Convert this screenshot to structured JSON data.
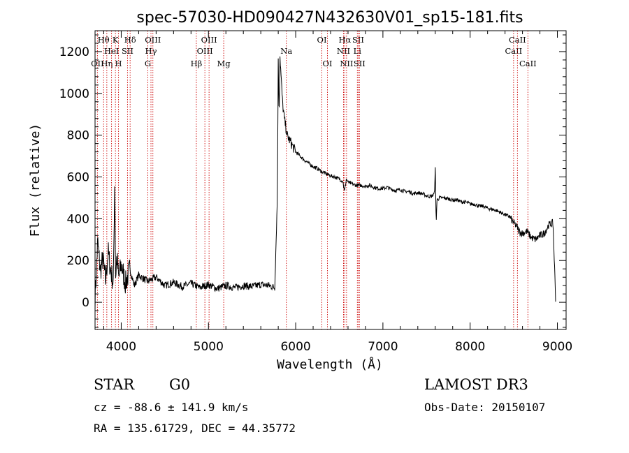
{
  "chart_data": {
    "type": "line",
    "title": "spec-57030-HD090427N432630V01_sp15-181.fits",
    "xlabel": "Wavelength (Å)",
    "ylabel": "Flux (relative)",
    "xlim": [
      3700,
      9100
    ],
    "ylim": [
      -130,
      1300
    ],
    "xticks": [
      4000,
      5000,
      6000,
      7000,
      8000,
      9000
    ],
    "yticks": [
      0,
      200,
      400,
      600,
      800,
      1000,
      1200
    ],
    "grid": false,
    "line_color": "#000000",
    "marker_color": "#cc0000",
    "series": [
      {
        "x": [
          3700,
          3730,
          3760,
          3790,
          3820,
          3850,
          3880,
          3910,
          3925,
          3935,
          3950,
          3970,
          4000,
          4050,
          4100,
          4150,
          4200,
          4300,
          4400,
          4500,
          4600,
          4700,
          4800,
          4900,
          5000,
          5100,
          5200,
          5300,
          5400,
          5500,
          5600,
          5700,
          5760,
          5790,
          5800,
          5810,
          5820,
          5830,
          5850,
          5870,
          5890,
          5900,
          5950,
          6000,
          6050,
          6100,
          6150,
          6200,
          6250,
          6300,
          6350,
          6400,
          6450,
          6500,
          6540,
          6560,
          6580,
          6600,
          6650,
          6700,
          6750,
          6800,
          6850,
          6900,
          6950,
          7000,
          7050,
          7100,
          7150,
          7200,
          7250,
          7300,
          7350,
          7400,
          7450,
          7500,
          7550,
          7590,
          7600,
          7610,
          7620,
          7650,
          7700,
          7750,
          7800,
          7850,
          7900,
          7950,
          8000,
          8050,
          8100,
          8150,
          8200,
          8250,
          8300,
          8350,
          8400,
          8450,
          8500,
          8540,
          8560,
          8600,
          8650,
          8700,
          8750,
          8800,
          8850,
          8900,
          8950,
          8980
        ],
        "y": [
          20,
          290,
          150,
          210,
          100,
          240,
          150,
          90,
          600,
          120,
          220,
          110,
          180,
          90,
          160,
          80,
          130,
          100,
          120,
          80,
          95,
          75,
          90,
          70,
          85,
          65,
          80,
          70,
          80,
          75,
          85,
          80,
          70,
          500,
          1150,
          900,
          1180,
          1100,
          950,
          880,
          830,
          800,
          760,
          720,
          700,
          680,
          665,
          650,
          640,
          625,
          615,
          605,
          600,
          590,
          580,
          530,
          590,
          575,
          565,
          560,
          560,
          555,
          560,
          550,
          545,
          545,
          550,
          540,
          535,
          540,
          530,
          530,
          520,
          525,
          520,
          510,
          505,
          520,
          640,
          380,
          490,
          500,
          500,
          495,
          490,
          490,
          480,
          480,
          470,
          470,
          460,
          460,
          450,
          445,
          440,
          430,
          420,
          410,
          380,
          360,
          340,
          330,
          340,
          310,
          300,
          320,
          330,
          370,
          380,
          20
        ]
      }
    ],
    "line_markers": [
      {
        "label": "Hθ",
        "x": 3798,
        "row": 1
      },
      {
        "label": "OII",
        "x": 3727,
        "row": 3
      },
      {
        "label": "Hη",
        "x": 3835,
        "row": 3
      },
      {
        "label": "HeI",
        "x": 3889,
        "row": 2
      },
      {
        "label": "K",
        "x": 3934,
        "row": 1
      },
      {
        "label": "H",
        "x": 3969,
        "row": 3
      },
      {
        "label": "SII",
        "x": 4072,
        "row": 2
      },
      {
        "label": "Hδ",
        "x": 4102,
        "row": 1
      },
      {
        "label": "G",
        "x": 4305,
        "row": 3
      },
      {
        "label": "Hγ",
        "x": 4341,
        "row": 2
      },
      {
        "label": "OIII",
        "x": 4363,
        "row": 1
      },
      {
        "label": "Hβ",
        "x": 4861,
        "row": 3
      },
      {
        "label": "OIII",
        "x": 4959,
        "row": 2
      },
      {
        "label": "OIII",
        "x": 5007,
        "row": 1
      },
      {
        "label": "Mg",
        "x": 5175,
        "row": 3
      },
      {
        "label": "Na",
        "x": 5893,
        "row": 2
      },
      {
        "label": "OI",
        "x": 6300,
        "row": 1
      },
      {
        "label": "OI",
        "x": 6364,
        "row": 3
      },
      {
        "label": "NII",
        "x": 6548,
        "row": 2
      },
      {
        "label": "Hα",
        "x": 6563,
        "row": 1
      },
      {
        "label": "NII",
        "x": 6583,
        "row": 3
      },
      {
        "label": "Li",
        "x": 6707,
        "row": 2
      },
      {
        "label": "SII",
        "x": 6716,
        "row": 1
      },
      {
        "label": "SII",
        "x": 6731,
        "row": 3
      },
      {
        "label": "CaII",
        "x": 8498,
        "row": 2
      },
      {
        "label": "CaII",
        "x": 8542,
        "row": 1
      },
      {
        "label": "CaII",
        "x": 8662,
        "row": 3
      }
    ]
  },
  "info": {
    "object_class": "STAR",
    "subclass": "G0",
    "survey": "LAMOST DR3",
    "cz": "cz = -88.6 ± 141.9 km/s",
    "obs_date": "Obs-Date: 20150107",
    "coords": "RA = 135.61729, DEC =  44.35772"
  }
}
